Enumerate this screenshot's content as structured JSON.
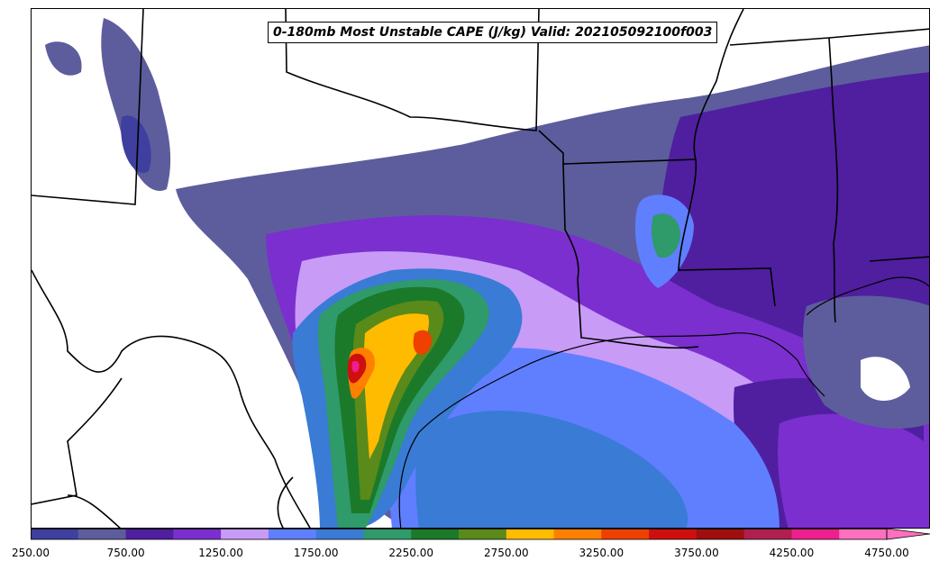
{
  "title": "0-180mb Most Unstable CAPE (J/kg) Valid: 202105092100f003",
  "colorbar": {
    "ticks": [
      "250.00",
      "750.00",
      "1250.00",
      "1750.00",
      "2250.00",
      "2750.00",
      "3250.00",
      "3750.00",
      "4250.00",
      "4750.00"
    ],
    "colors": [
      "#3f3f9f",
      "#5d5d9d",
      "#4f1f9f",
      "#7b2fcf",
      "#c89bf7",
      "#5f7fff",
      "#3a7bd5",
      "#2f9a6a",
      "#1a7a2a",
      "#5a8a1a",
      "#ffbb00",
      "#ff8000",
      "#ef4000",
      "#cf0f0f",
      "#9f0f0f",
      "#af1f4f",
      "#ef1f8f",
      "#ff6fbf"
    ],
    "extend": "max"
  },
  "map": {
    "land_color": "#ffffff",
    "boundary_color": "#000000"
  }
}
